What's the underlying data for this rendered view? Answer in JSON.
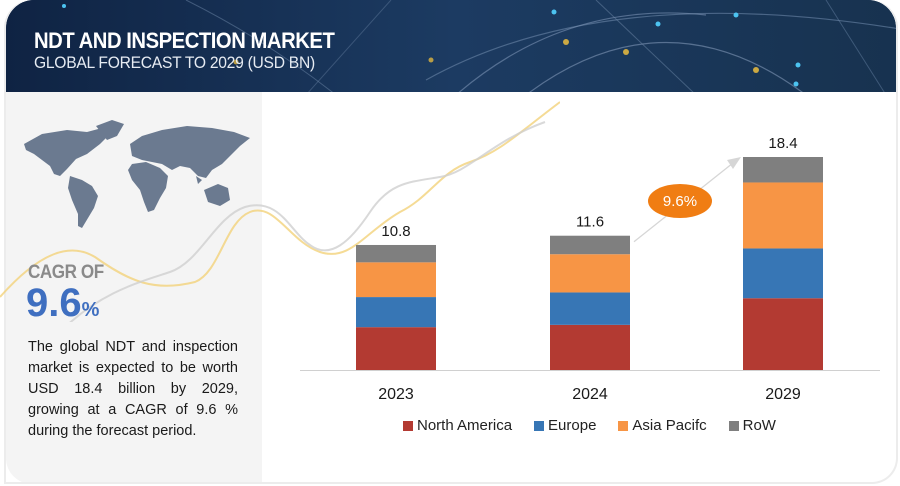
{
  "header": {
    "title": "NDT AND INSPECTION MARKET",
    "subtitle": "GLOBAL FORECAST TO 2029 (USD BN)"
  },
  "sidebar": {
    "map_icon": "world-map-icon",
    "cagr_label": "CAGR OF",
    "cagr_value": "9.6",
    "cagr_unit": "%",
    "description": "The global NDT and inspection market is expected to be worth USD 18.4 billion by 2029, growing at a CAGR of 9.6 % during the forecast period."
  },
  "colors": {
    "header_bg": "#15304f",
    "accent_blue": "#3f6fc0",
    "badge": "#f07d13",
    "north_america": "#b33a32",
    "europe": "#3776b5",
    "asia_pacific": "#f79545",
    "row": "#7f7f7f"
  },
  "chart_data": {
    "type": "bar",
    "stacked": true,
    "title": "NDT AND INSPECTION MARKET — GLOBAL FORECAST TO 2029 (USD BN)",
    "xlabel": "",
    "ylabel": "USD BN",
    "categories": [
      "2023",
      "2024",
      "2029"
    ],
    "series": [
      {
        "name": "North America",
        "color": "#b33a32",
        "values": [
          3.7,
          3.9,
          6.2
        ]
      },
      {
        "name": "Europe",
        "color": "#3776b5",
        "values": [
          2.6,
          2.8,
          4.3
        ]
      },
      {
        "name": "Asia Pacifc",
        "color": "#f79545",
        "values": [
          3.0,
          3.3,
          5.7
        ]
      },
      {
        "name": "RoW",
        "color": "#7f7f7f",
        "values": [
          1.5,
          1.6,
          2.2
        ]
      }
    ],
    "totals": [
      10.8,
      11.6,
      18.4
    ],
    "total_labels": [
      "10.8",
      "11.6",
      "18.4"
    ],
    "ylim": [
      0,
      18.4
    ],
    "grid": false,
    "legend": "bottom",
    "annotation": {
      "text": "9.6%",
      "type": "cagr-arrow",
      "from": "2024",
      "to": "2029"
    }
  }
}
